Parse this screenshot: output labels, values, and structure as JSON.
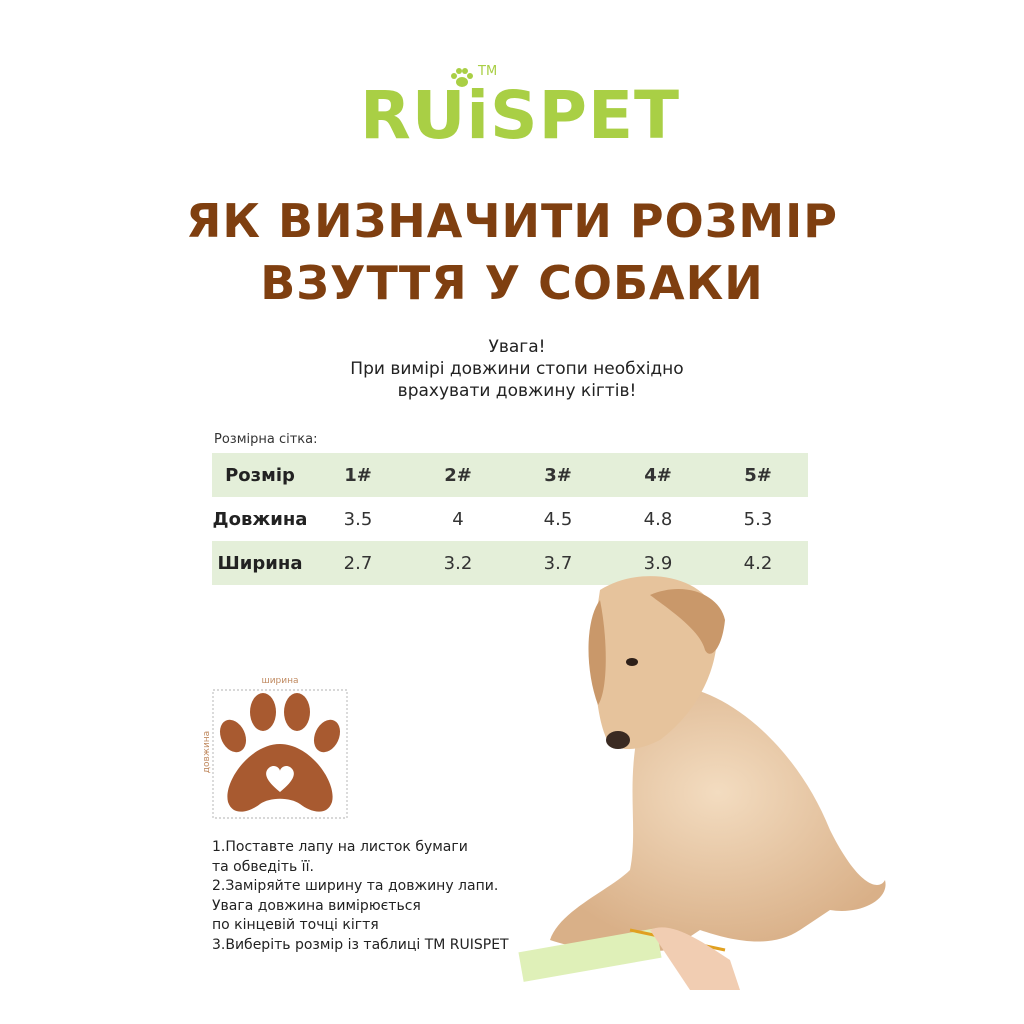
{
  "logo": {
    "text": "RUiSPET",
    "tm": "TM",
    "color": "#a9cf45"
  },
  "title": {
    "line1": "ЯК ВИЗНАЧИТИ РОЗМІР",
    "line2": "ВЗУТТЯ У СОБАКИ",
    "color": "#7f3f10"
  },
  "notice": {
    "line1": "Увага!",
    "line2": "При вимірі довжини стопи необхідно",
    "line3": "врахувати довжину кігтів!"
  },
  "size_grid": {
    "label": "Розмірна сітка:",
    "header": [
      "Розмір",
      "1#",
      "2#",
      "3#",
      "4#",
      "5#"
    ],
    "rows": [
      [
        "Довжина",
        "3.5",
        "4",
        "4.5",
        "4.8",
        "5.3"
      ],
      [
        "Ширина",
        "2.7",
        "3.2",
        "3.7",
        "3.9",
        "4.2"
      ]
    ],
    "stripe_color": "#e4efd9"
  },
  "paw_diagram": {
    "width_label": "ширина",
    "length_label": "довжина",
    "color": "#a85a30"
  },
  "steps": [
    "1.Поставте лапу на листок бумаги",
    "та обведіть її.",
    "2.Заміряйте ширину та довжину лапи.",
    "Увага довжина вимірюється",
    "по кінцевій точці кігтя",
    "3.Виберіть розмір із таблиці ТМ RUISPET"
  ]
}
